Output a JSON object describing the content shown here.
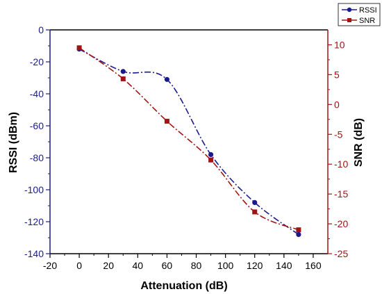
{
  "chart_data": {
    "type": "line",
    "xlabel": "Attenuation (dB)",
    "ylabel": "RSSI (dBm)",
    "y2label": "SNR (dB)",
    "xlim": [
      -20,
      170
    ],
    "ylim": [
      -140,
      0
    ],
    "y2lim": [
      -25,
      12.5
    ],
    "x_ticks": [
      "-20",
      "0",
      "20",
      "40",
      "60",
      "80",
      "100",
      "120",
      "140",
      "160"
    ],
    "y_ticks": [
      "0",
      "-20",
      "-40",
      "-60",
      "-80",
      "-100",
      "-120",
      "-140"
    ],
    "y2_ticks": [
      "10",
      "5",
      "0",
      "-5",
      "-10",
      "-15",
      "-20",
      "-25"
    ],
    "grid": false,
    "legend_position": "top-right",
    "series": [
      {
        "name": "RSSI",
        "axis": "left",
        "color": "#1a1a8c",
        "marker": "circle",
        "line_style": "dash-dot",
        "x": [
          0,
          30,
          60,
          90,
          120,
          150
        ],
        "y": [
          -12,
          -26,
          -31,
          -78,
          -108,
          -128
        ]
      },
      {
        "name": "SNR",
        "axis": "right",
        "color": "#a01414",
        "marker": "square",
        "line_style": "dash-dot",
        "x": [
          0,
          30,
          60,
          90,
          120,
          150
        ],
        "y": [
          9.5,
          4.3,
          -2.8,
          -9.3,
          -18,
          -21
        ]
      }
    ]
  }
}
